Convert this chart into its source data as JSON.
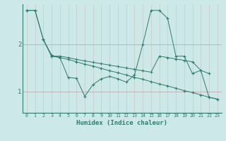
{
  "xlabel": "Humidex (Indice chaleur)",
  "background_color": "#cce8e8",
  "line_color": "#2e7d6e",
  "grid_color_v": "#c8c8c8",
  "grid_color_h": "#c0a0a0",
  "x_ticks": [
    0,
    1,
    2,
    3,
    4,
    5,
    6,
    7,
    8,
    9,
    10,
    11,
    12,
    13,
    14,
    15,
    16,
    17,
    18,
    19,
    20,
    21,
    22,
    23
  ],
  "y_ticks": [
    1,
    2
  ],
  "ylim": [
    0.55,
    2.85
  ],
  "xlim": [
    -0.5,
    23.5
  ],
  "series1_x": [
    0,
    1,
    2,
    3,
    4,
    5,
    6,
    7,
    8,
    9,
    10,
    11,
    12,
    13,
    14,
    15,
    16,
    17,
    18,
    19,
    20,
    21,
    22
  ],
  "series1_y": [
    2.72,
    2.72,
    2.1,
    1.75,
    1.75,
    1.72,
    1.68,
    1.65,
    1.62,
    1.59,
    1.56,
    1.53,
    1.5,
    1.47,
    1.44,
    1.41,
    1.75,
    1.72,
    1.69,
    1.66,
    1.63,
    1.45,
    1.38
  ],
  "series2_x": [
    0,
    1,
    2,
    3,
    4,
    5,
    6,
    7,
    8,
    9,
    10,
    11,
    12,
    13,
    14,
    15,
    16,
    17,
    18,
    19,
    20,
    21,
    22,
    23
  ],
  "series2_y": [
    2.72,
    2.72,
    2.1,
    1.77,
    1.72,
    1.68,
    1.63,
    1.58,
    1.54,
    1.49,
    1.44,
    1.4,
    1.35,
    1.3,
    1.26,
    1.21,
    1.16,
    1.12,
    1.07,
    1.02,
    0.98,
    0.93,
    0.88,
    0.84
  ],
  "series3_x": [
    2,
    3,
    4,
    5,
    6,
    7,
    8,
    9,
    10,
    11,
    12,
    13,
    14,
    15,
    16,
    17,
    18,
    19,
    20,
    21,
    22,
    23
  ],
  "series3_y": [
    2.1,
    1.75,
    1.72,
    1.3,
    1.28,
    0.9,
    1.15,
    1.27,
    1.32,
    1.27,
    1.2,
    1.35,
    2.0,
    2.72,
    2.72,
    2.55,
    1.75,
    1.75,
    1.38,
    1.45,
    0.88,
    0.84
  ]
}
